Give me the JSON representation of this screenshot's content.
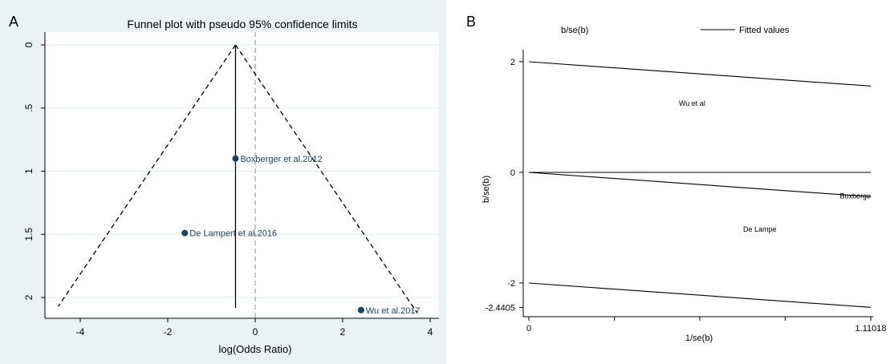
{
  "chart_data": [
    {
      "panel_letter": "A",
      "type": "scatter",
      "title": "Funnel plot with pseudo 95% confidence limits",
      "xlabel": "log(Odds Ratio)",
      "ylabel": "",
      "xlim": [
        -4.6,
        4.1
      ],
      "ylim": [
        2.1,
        0
      ],
      "y_reversed": true,
      "x_ticks": [
        "-4",
        "-2",
        "0",
        "2",
        "4"
      ],
      "x_tick_values": [
        -4,
        -2,
        0,
        2,
        4
      ],
      "y_ticks": [
        "0",
        ".5",
        "1",
        "1.5",
        "2"
      ],
      "y_tick_values": [
        0,
        0.5,
        1,
        1.5,
        2
      ],
      "grid": true,
      "points": [
        {
          "label": "Boxberger et al.2012",
          "x": -0.45,
          "y": 0.9
        },
        {
          "label": "De Lampert et al.2016",
          "x": -1.61,
          "y": 1.49
        },
        {
          "label": "Wu et al.2017",
          "x": 2.42,
          "y": 2.1
        }
      ],
      "pooled_estimate": -0.45,
      "null_line": 0,
      "funnel": {
        "apex": [
          -0.45,
          0
        ],
        "left_base": [
          -4.5,
          2.07
        ],
        "right_base": [
          3.7,
          2.12
        ]
      }
    },
    {
      "panel_letter": "B",
      "type": "line",
      "legend": [
        "b/se(b)",
        "Fitted values"
      ],
      "legend_position": "top",
      "xlabel": "1/se(b)",
      "ylabel": "b/se(b)",
      "xlim": [
        0,
        1.11018
      ],
      "ylim": [
        -2.4405,
        2.1
      ],
      "x_ticks": [
        "0",
        "1.11018"
      ],
      "x_tick_values": [
        0,
        1.11018
      ],
      "y_ticks": [
        "2",
        "0",
        "-2",
        "-2.4405"
      ],
      "y_tick_values": [
        2,
        0,
        -2,
        -2.4405
      ],
      "grid": false,
      "lines": [
        {
          "x": [
            0,
            1.11018
          ],
          "y": [
            2,
            1.56
          ]
        },
        {
          "x": [
            0,
            1.11018
          ],
          "y": [
            0,
            0
          ]
        },
        {
          "x": [
            0,
            1.11018
          ],
          "y": [
            0,
            -0.44
          ]
        },
        {
          "x": [
            0,
            1.11018
          ],
          "y": [
            -2,
            -2.44
          ]
        }
      ],
      "point_labels": [
        {
          "label": "Wu et al",
          "x": 0.53,
          "y": 1.2
        },
        {
          "label": "Boxberge",
          "x": 1.11018,
          "y": -0.47
        },
        {
          "label": "De Lampe",
          "x": 0.75,
          "y": -1.07
        }
      ]
    }
  ]
}
